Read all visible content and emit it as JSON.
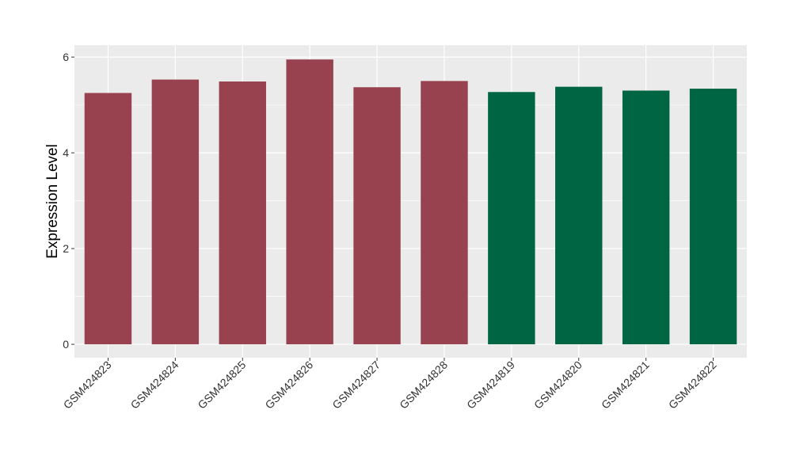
{
  "chart_data": {
    "type": "bar",
    "title": "",
    "xlabel": "",
    "ylabel": "Expression Level",
    "categories": [
      "GSM424823",
      "GSM424824",
      "GSM424825",
      "GSM424826",
      "GSM424827",
      "GSM424828",
      "GSM424819",
      "GSM424820",
      "GSM424821",
      "GSM424822"
    ],
    "values": [
      5.25,
      5.53,
      5.49,
      5.95,
      5.37,
      5.5,
      5.27,
      5.38,
      5.3,
      5.34
    ],
    "bar_colors": [
      "#99424f",
      "#99424f",
      "#99424f",
      "#99424f",
      "#99424f",
      "#99424f",
      "#006543",
      "#006543",
      "#006543",
      "#006543"
    ],
    "ylim": [
      -0.28,
      6.25
    ],
    "yticks": [
      0,
      2,
      4,
      6
    ],
    "grid": true,
    "legend": "none",
    "panel_background": "#ebebeb",
    "grid_color": "#ffffff"
  }
}
